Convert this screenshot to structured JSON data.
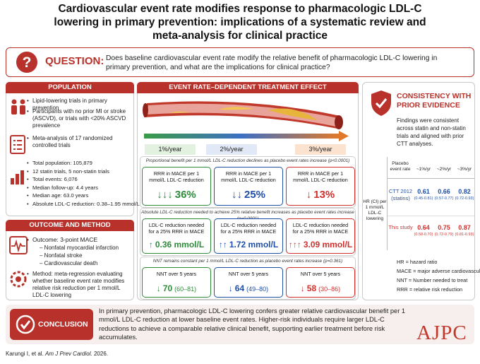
{
  "title": "Cardiovascular event rate modifies response to pharmacologic LDL-C lowering in primary prevention: implications of a systematic review and meta-analysis for clinical practice",
  "question": {
    "label": "QUESTION:",
    "text": "Does baseline cardiovascular event rate modify the relative benefit of pharmacologic LDL-C lowering in primary prevention, and what are the implications for clinical practice?"
  },
  "population": {
    "heading": "POPULATION",
    "criteria": [
      "Lipid-lowering trials in primary prevention",
      "Participants with no prior MI or stroke (ASCVD), or trials with <20% ASCVD prevalence",
      "Meta-analysis of 17 randomized controlled trials"
    ],
    "stats": [
      "Total population: 105,879",
      "12 statin trials, 5 non-statin trials",
      "Total events: 6,076",
      "Median follow-up: 4.4 years",
      "Median age: 63.0 years",
      "Absolute LDL-C reduction: 0.38–1.95 mmol/L"
    ]
  },
  "outcome_method": {
    "heading": "OUTCOME AND METHOD",
    "outcome": "Outcome: 3-point MACE",
    "components": [
      "– Nonfatal myocardial infarction",
      "– Nonfatal stroke",
      "– Cardiovascular death"
    ],
    "method": "Method: meta-regression evaluating whether baseline event rate modifies relative risk reduction per 1 mmol/L LDL-C lowering"
  },
  "effect": {
    "heading": "EVENT RATE–DEPENDENT TREATMENT EFFECT",
    "rates": [
      "1%/year",
      "2%/year",
      "3%/year"
    ],
    "panels": [
      {
        "caption": "Proportional benefit per 1 mmol/L LDL-C reduction declines as placebo event rates increase (p<0.0001)",
        "boxes": [
          {
            "label": "RRR in MACE per 1 mmol/L LDL-C reduction",
            "arrows": "↓↓↓",
            "value": "36%"
          },
          {
            "label": "RRR in MACE per 1 mmol/L LDL-C reduction",
            "arrows": "↓↓",
            "value": "25%"
          },
          {
            "label": "RRR in MACE per 1 mmol/L LDL-C reduction",
            "arrows": "↓",
            "value": "13%"
          }
        ]
      },
      {
        "caption": "Absolute LDL-C reduction needed to achieve 25% relative benefit increases as placebo event rates increase (p=0.0001)",
        "boxes": [
          {
            "label": "LDL-C reduction needed for a 25% RRR in MACE",
            "arrows": "↑",
            "value": "0.36 mmol/L"
          },
          {
            "label": "LDL-C reduction needed for a 25% RRR in MACE",
            "arrows": "↑↑",
            "value": "1.72 mmol/L"
          },
          {
            "label": "LDL-C reduction needed for a 25% RRR in MACE",
            "arrows": "↑↑↑",
            "value": "3.09 mmol/L"
          }
        ]
      },
      {
        "caption": "NNT remains constant per 1 mmol/L LDL-C reduction as placebo event rates increase (p=0.361)",
        "boxes": [
          {
            "label": "NNT over 5 years",
            "arrows": "↓",
            "value": "70",
            "ci": "(60–81)"
          },
          {
            "label": "NNT over 5 years",
            "arrows": "↓",
            "value": "64",
            "ci": "(49–80)"
          },
          {
            "label": "NNT over 5 years",
            "arrows": "↓",
            "value": "58",
            "ci": "(30–86)"
          }
        ]
      }
    ]
  },
  "consistency": {
    "heading": "CONSISTENCY WITH PRIOR EVIDENCE",
    "text": "Findings were consistent across statin and non-statin trials and aligned with prior CTT analyses.",
    "table": {
      "placebo_header": "Placebo event rate",
      "columns": [
        "~1%/yr",
        "~2%/yr",
        "~3%/yr"
      ],
      "row_header": "HR (CI) per 1 mmol/L LDL-C lowering",
      "rows": [
        {
          "source": "CTT 2012 (statins)",
          "cells": [
            {
              "hr": "0.61",
              "ci": "(0.45-0.81)"
            },
            {
              "hr": "0.66",
              "ci": "(0.57-0.77)"
            },
            {
              "hr": "0.82",
              "ci": "(0.72-0.93)"
            }
          ]
        },
        {
          "source": "This study",
          "cells": [
            {
              "hr": "0.64",
              "ci": "(0.58-0.70)"
            },
            {
              "hr": "0.75",
              "ci": "(0.72-0.79)"
            },
            {
              "hr": "0.87",
              "ci": "(0.81-0.93)"
            }
          ]
        }
      ]
    },
    "abbreviations": [
      "HR = hazard ratio",
      "MACE = major adverse cardiovascular event",
      "NNT = Number needed to treat",
      "RRR = relative risk reduction"
    ]
  },
  "conclusion": {
    "label": "CONCLUSION",
    "text": "In primary prevention, pharmacologic LDL-C lowering confers greater relative cardiovascular benefit per 1 mmol/L LDL-C reduction at lower baseline event rates. Higher-risk individuals require larger LDL-C reductions to achieve a comparable relative clinical benefit, supporting earlier treatment before risk accumulates."
  },
  "citation": {
    "authors": "Karungi I, et al.",
    "journal": "Am J Prev Cardiol.",
    "year": "2026."
  },
  "logo": "AJPC"
}
